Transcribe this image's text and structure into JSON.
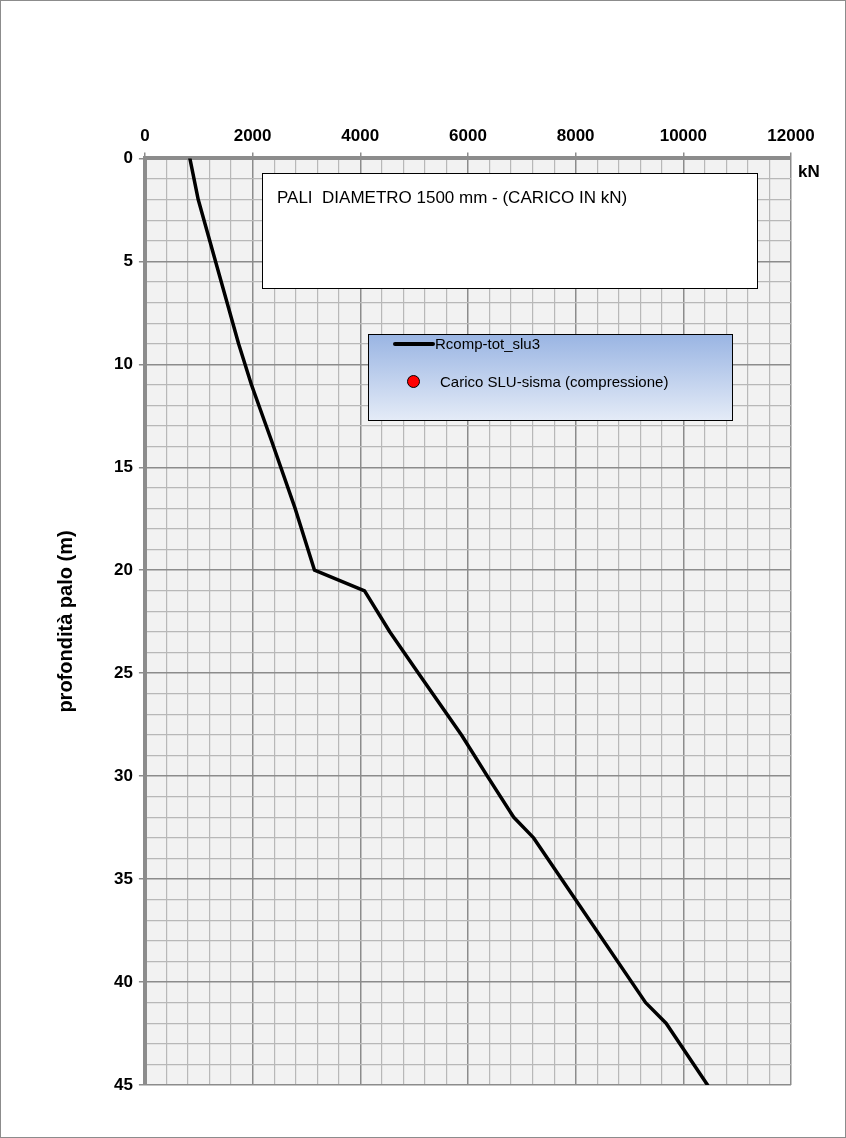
{
  "chart_data": {
    "type": "line",
    "title": "PALI  DIAMETRO 1500 mm - (CARICO IN kN)",
    "xlabel": "kN",
    "ylabel": "profondità palo (m)",
    "xlim": [
      0,
      12000
    ],
    "ylim": [
      45,
      0
    ],
    "xticks": [
      0,
      {
        "value": 400,
        "label": null
      },
      {
        "value": 800,
        "label": null
      },
      {
        "value": 1200,
        "label": null
      },
      {
        "value": 1600,
        "label": null
      },
      2000,
      {
        "value": 2400,
        "label": null
      },
      {
        "value": 2800,
        "label": null
      },
      {
        "value": 3200,
        "label": null
      },
      {
        "value": 3600,
        "label": null
      },
      4000,
      {
        "value": 4400,
        "label": null
      },
      {
        "value": 4800,
        "label": null
      },
      {
        "value": 5200,
        "label": null
      },
      {
        "value": 5600,
        "label": null
      },
      6000,
      {
        "value": 6400,
        "label": null
      },
      {
        "value": 6800,
        "label": null
      },
      {
        "value": 7200,
        "label": null
      },
      {
        "value": 7600,
        "label": null
      },
      8000,
      {
        "value": 8400,
        "label": null
      },
      {
        "value": 8800,
        "label": null
      },
      {
        "value": 9200,
        "label": null
      },
      {
        "value": 9600,
        "label": null
      },
      10000,
      {
        "value": 10400,
        "label": null
      },
      {
        "value": 10800,
        "label": null
      },
      {
        "value": 11200,
        "label": null
      },
      {
        "value": 11600,
        "label": null
      },
      12000
    ],
    "yticks": [
      0,
      {
        "value": 1,
        "label": null
      },
      {
        "value": 2,
        "label": null
      },
      {
        "value": 3,
        "label": null
      },
      {
        "value": 4,
        "label": null
      },
      5,
      {
        "value": 6,
        "label": null
      },
      {
        "value": 7,
        "label": null
      },
      {
        "value": 8,
        "label": null
      },
      {
        "value": 9,
        "label": null
      },
      10,
      {
        "value": 11,
        "label": null
      },
      {
        "value": 12,
        "label": null
      },
      {
        "value": 13,
        "label": null
      },
      {
        "value": 14,
        "label": null
      },
      15,
      {
        "value": 16,
        "label": null
      },
      {
        "value": 17,
        "label": null
      },
      {
        "value": 18,
        "label": null
      },
      {
        "value": 19,
        "label": null
      },
      20,
      {
        "value": 21,
        "label": null
      },
      {
        "value": 22,
        "label": null
      },
      {
        "value": 23,
        "label": null
      },
      {
        "value": 24,
        "label": null
      },
      25,
      {
        "value": 26,
        "label": null
      },
      {
        "value": 27,
        "label": null
      },
      {
        "value": 28,
        "label": null
      },
      {
        "value": 29,
        "label": null
      },
      30,
      {
        "value": 31,
        "label": null
      },
      {
        "value": 32,
        "label": null
      },
      {
        "value": 33,
        "label": null
      },
      {
        "value": 34,
        "label": null
      },
      35,
      {
        "value": 36,
        "label": null
      },
      {
        "value": 37,
        "label": null
      },
      {
        "value": 38,
        "label": null
      },
      {
        "value": 39,
        "label": null
      },
      40,
      {
        "value": 41,
        "label": null
      },
      {
        "value": 42,
        "label": null
      },
      {
        "value": 43,
        "label": null
      },
      {
        "value": 44,
        "label": null
      },
      45
    ],
    "grid": true,
    "legend": "top right",
    "marker": "none",
    "line_style": "solid",
    "series": [
      {
        "name": "Rcomp-tot_slu3",
        "color": "#000000",
        "x": [
          835,
          990,
          1740,
          1980,
          2350,
          2790,
          3150,
          4080,
          4550,
          5080,
          5880,
          6360,
          6850,
          7220,
          8000,
          9300,
          9680,
          10450
        ],
        "values": [
          0,
          2,
          9,
          11,
          13.7,
          17,
          20,
          21,
          23,
          25,
          28,
          30,
          32,
          33,
          36,
          41,
          42,
          45
        ]
      },
      {
        "name": "Carico SLU-sisma (compressione)",
        "type": "scatter",
        "color": "#ff0000",
        "marker": "circle"
      }
    ]
  }
}
